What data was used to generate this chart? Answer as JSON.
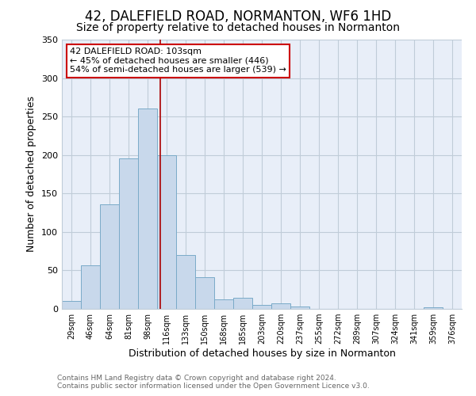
{
  "title": "42, DALEFIELD ROAD, NORMANTON, WF6 1HD",
  "subtitle": "Size of property relative to detached houses in Normanton",
  "xlabel": "Distribution of detached houses by size in Normanton",
  "ylabel": "Number of detached properties",
  "bar_labels": [
    "29sqm",
    "46sqm",
    "64sqm",
    "81sqm",
    "98sqm",
    "116sqm",
    "133sqm",
    "150sqm",
    "168sqm",
    "185sqm",
    "203sqm",
    "220sqm",
    "237sqm",
    "255sqm",
    "272sqm",
    "289sqm",
    "307sqm",
    "324sqm",
    "341sqm",
    "359sqm",
    "376sqm"
  ],
  "bar_values": [
    10,
    57,
    136,
    196,
    260,
    200,
    70,
    41,
    12,
    14,
    5,
    7,
    3,
    0,
    0,
    0,
    0,
    0,
    0,
    2,
    0
  ],
  "bar_color": "#c8d8eb",
  "bar_edge_color": "#7aaac8",
  "vline_x": 4.65,
  "vline_color": "#aa0000",
  "ylim": [
    0,
    350
  ],
  "yticks": [
    0,
    50,
    100,
    150,
    200,
    250,
    300,
    350
  ],
  "annotation_title": "42 DALEFIELD ROAD: 103sqm",
  "annotation_line1": "← 45% of detached houses are smaller (446)",
  "annotation_line2": "54% of semi-detached houses are larger (539) →",
  "annotation_box_color": "#ffffff",
  "annotation_box_edge": "#cc0000",
  "footer1": "Contains HM Land Registry data © Crown copyright and database right 2024.",
  "footer2": "Contains public sector information licensed under the Open Government Licence v3.0.",
  "plot_bg_color": "#e8eef8",
  "fig_bg_color": "#ffffff",
  "grid_color": "#c0ccd8",
  "title_fontsize": 12,
  "subtitle_fontsize": 10
}
